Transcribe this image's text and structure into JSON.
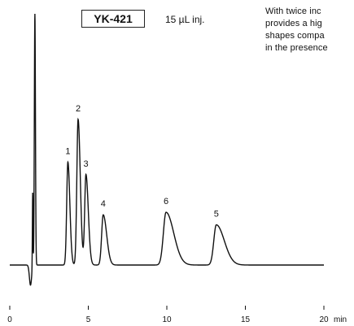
{
  "column_label": "YK-421",
  "injection": "15 µL  inj.",
  "note_lines": [
    "With twice inc",
    "provides a hig",
    "shapes compa",
    "in the presence"
  ],
  "chart_data": {
    "type": "line",
    "title": "",
    "xlabel": "min",
    "ylabel": "",
    "xlim": [
      0,
      20
    ],
    "xticks": [
      0,
      5,
      10,
      15,
      20
    ],
    "xtick_labels": [
      "0",
      "5",
      "10",
      "15",
      "20"
    ],
    "peaks": [
      {
        "label": "1",
        "rt": 3.7,
        "height": 0.41,
        "sigma": 0.075,
        "tail": 0.05
      },
      {
        "label": "2",
        "rt": 4.35,
        "height": 0.58,
        "sigma": 0.08,
        "tail": 0.06
      },
      {
        "label": "3",
        "rt": 4.85,
        "height": 0.36,
        "sigma": 0.08,
        "tail": 0.07
      },
      {
        "label": "4",
        "rt": 5.95,
        "height": 0.2,
        "sigma": 0.1,
        "tail": 0.12
      },
      {
        "label": "6",
        "rt": 9.95,
        "height": 0.21,
        "sigma": 0.17,
        "tail": 0.32
      },
      {
        "label": "5",
        "rt": 13.15,
        "height": 0.16,
        "sigma": 0.16,
        "tail": 0.35
      }
    ],
    "solvent_front": {
      "rt": 1.6,
      "height": 1.0
    },
    "baseline": 0,
    "grid": false
  }
}
